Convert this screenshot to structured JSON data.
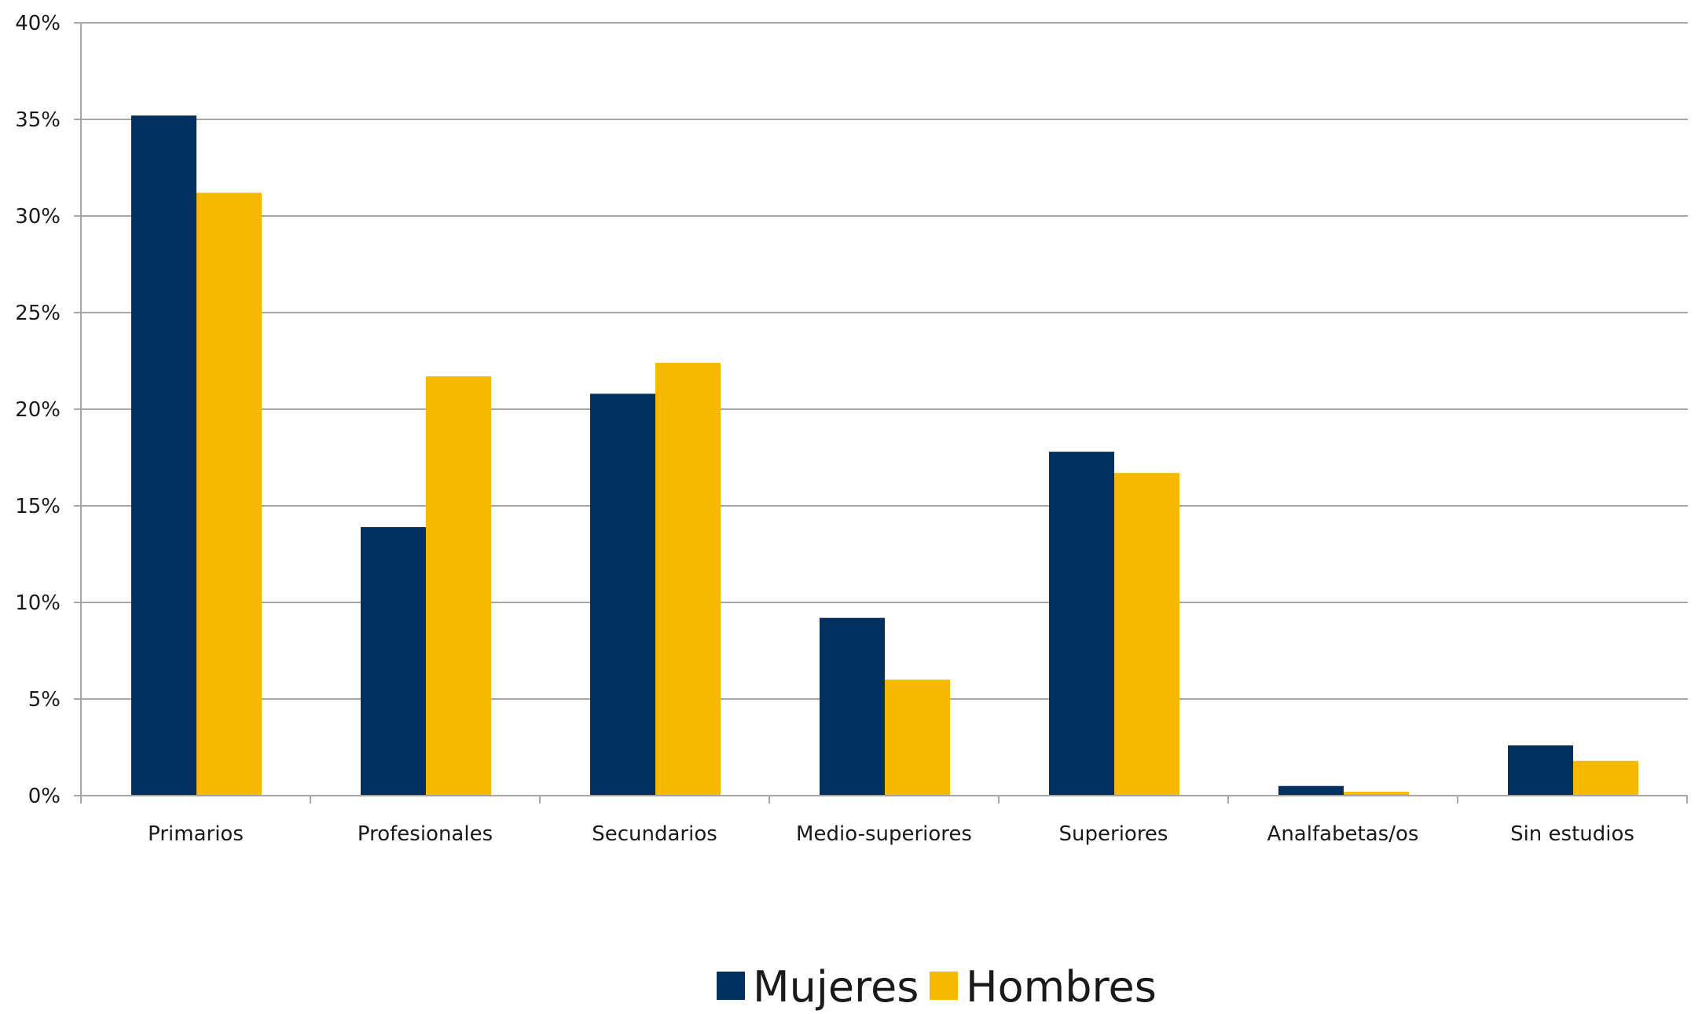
{
  "chart_data": {
    "type": "bar",
    "categories": [
      "Primarios",
      "Profesionales",
      "Secundarios",
      "Medio-superiores",
      "Superiores",
      "Analfabetas/os",
      "Sin estudios"
    ],
    "series": [
      {
        "name": "Mujeres",
        "color": "#003060",
        "values": [
          35.2,
          13.9,
          20.8,
          9.2,
          17.8,
          0.5,
          2.6
        ]
      },
      {
        "name": "Hombres",
        "color": "#F7B800",
        "values": [
          31.2,
          21.7,
          22.4,
          6.0,
          16.7,
          0.2,
          1.8
        ]
      }
    ],
    "y_ticks": [
      "0%",
      "5%",
      "10%",
      "15%",
      "20%",
      "25%",
      "30%",
      "35%",
      "40%"
    ],
    "ylim": [
      0,
      40
    ],
    "grid": true,
    "legend_position": "bottom-center",
    "title": "",
    "xlabel": "",
    "ylabel": ""
  }
}
